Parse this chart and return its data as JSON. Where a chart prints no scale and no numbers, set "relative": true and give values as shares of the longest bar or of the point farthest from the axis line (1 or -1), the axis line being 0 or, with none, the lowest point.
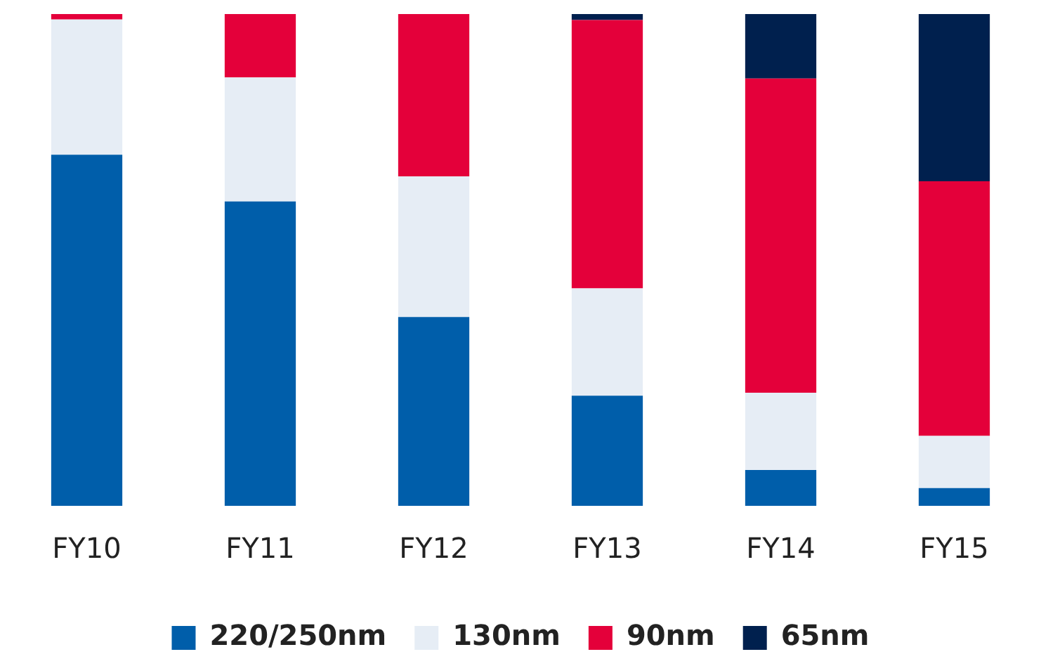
{
  "chart_data": {
    "type": "bar",
    "stacked": true,
    "relative": true,
    "categories": [
      "FY10",
      "FY11",
      "FY12",
      "FY13",
      "FY14",
      "FY15"
    ],
    "series": [
      {
        "name": "220/250nm",
        "color": "#005eaa",
        "values": [
          0.714,
          0.619,
          0.384,
          0.224,
          0.073,
          0.036
        ]
      },
      {
        "name": "130nm",
        "color": "#e6edf5",
        "values": [
          0.275,
          0.252,
          0.286,
          0.218,
          0.157,
          0.106
        ]
      },
      {
        "name": "90nm",
        "color": "#e4003a",
        "values": [
          0.011,
          0.129,
          0.33,
          0.546,
          0.639,
          0.518
        ]
      },
      {
        "name": "65nm",
        "color": "#00204e",
        "values": [
          0,
          0,
          0,
          0.012,
          0.131,
          0.34
        ]
      }
    ],
    "grid": false,
    "legend": "bottom"
  }
}
